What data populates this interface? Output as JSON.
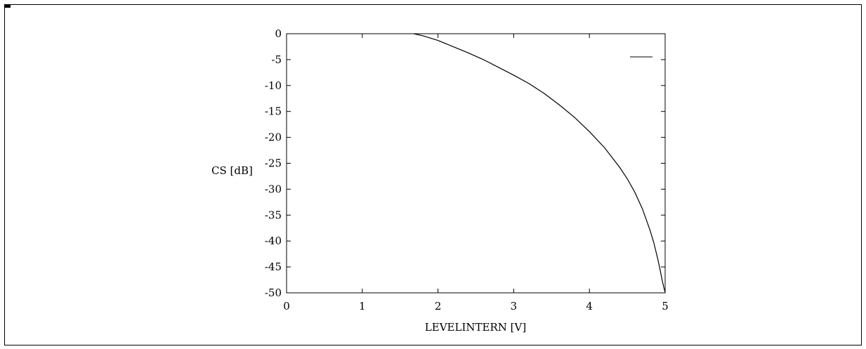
{
  "chart_data": {
    "type": "line",
    "xlabel": "LEVELINTERN [V]",
    "ylabel": "CS [dB]",
    "xlim": [
      0,
      5
    ],
    "ylim": [
      -50,
      0
    ],
    "x_ticks": [
      "0",
      "1",
      "2",
      "3",
      "4",
      "5"
    ],
    "y_ticks": [
      "0",
      "-5",
      "-10",
      "-15",
      "-20",
      "-25",
      "-30",
      "-35",
      "-40",
      "-45",
      "-50"
    ],
    "grid": false,
    "legend": "top-right",
    "series": [
      {
        "x": [
          1.68,
          1.8,
          2.0,
          2.2,
          2.4,
          2.6,
          2.8,
          3.0,
          3.2,
          3.4,
          3.6,
          3.8,
          4.0,
          4.2,
          4.4,
          4.5,
          4.6,
          4.7,
          4.8,
          4.85,
          4.9,
          4.93,
          4.96,
          4.98,
          5.0,
          5.0
        ],
        "y": [
          0,
          -0.4,
          -1.3,
          -2.5,
          -3.7,
          -5.0,
          -6.5,
          -8.0,
          -9.6,
          -11.5,
          -13.7,
          -16.1,
          -18.9,
          -22.0,
          -25.8,
          -28.0,
          -30.6,
          -33.8,
          -37.9,
          -40.3,
          -43.3,
          -45.3,
          -47.5,
          -48.8,
          -49.9,
          -50.0
        ]
      }
    ]
  }
}
